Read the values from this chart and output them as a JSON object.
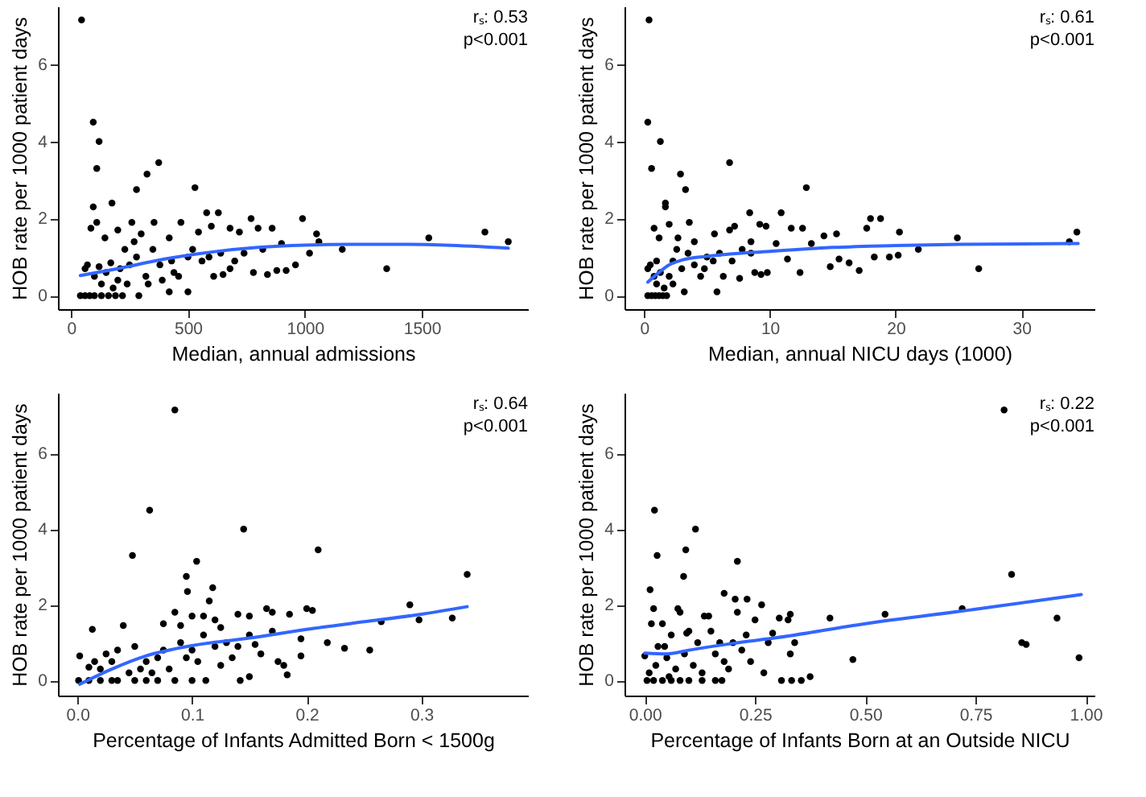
{
  "chart_data": [
    {
      "type": "scatter",
      "xlabel": "Median, annual admissions",
      "ylabel": "HOB rate per 1000 patient days",
      "xlim": [
        -56,
        1954
      ],
      "ylim": [
        -0.35,
        7.5
      ],
      "xticks": [
        0,
        500,
        1000,
        1500
      ],
      "yticks": [
        0,
        2,
        4,
        6
      ],
      "marker": "circle",
      "annotations": [
        "rₛ: 0.53",
        "p<0.001"
      ],
      "series": [
        {
          "color": "#000000",
          "x": [
            45,
            95,
            120,
            110,
            95,
            175,
            375,
            325,
            280,
            530,
            580,
            630,
            990,
            770,
            470,
            260,
            355,
            85,
            110,
            145,
            200,
            300,
            420,
            545,
            600,
            680,
            800,
            860,
            720,
            1050,
            1530,
            1770,
            1870,
            1160,
            1350,
            1020,
            1060,
            900,
            960,
            920,
            880,
            840,
            780,
            650,
            610,
            500,
            420,
            290,
            40,
            60,
            80,
            100,
            130,
            160,
            190,
            220,
            60,
            70,
            100,
            130,
            150,
            180,
            200,
            230,
            250,
            280,
            320,
            350,
            380,
            430,
            460,
            500,
            520,
            560,
            590,
            640,
            700,
            740,
            820,
            680,
            240,
            330,
            390,
            120,
            170,
            210,
            270,
            440
          ],
          "values": [
            7.15,
            4.5,
            4.0,
            3.3,
            2.3,
            2.4,
            3.45,
            3.15,
            2.75,
            2.8,
            2.15,
            2.15,
            2.0,
            2.0,
            1.9,
            1.9,
            1.9,
            1.75,
            1.9,
            1.5,
            1.7,
            1.6,
            1.5,
            1.65,
            1.8,
            1.75,
            1.75,
            1.75,
            1.65,
            1.6,
            1.5,
            1.65,
            1.4,
            1.2,
            0.7,
            1.1,
            1.4,
            1.35,
            0.8,
            0.65,
            0.65,
            0.55,
            0.6,
            0.55,
            0.5,
            0.1,
            0.1,
            0.0,
            0.0,
            0.0,
            0.0,
            0.0,
            0.0,
            0.0,
            0.0,
            0.0,
            0.7,
            0.8,
            0.5,
            0.3,
            0.6,
            0.2,
            0.4,
            1.2,
            0.8,
            1.0,
            0.5,
            1.2,
            0.8,
            0.9,
            0.5,
            1.0,
            1.2,
            0.9,
            1.0,
            1.1,
            0.9,
            1.1,
            1.2,
            0.7,
            0.3,
            0.3,
            0.4,
            0.75,
            0.85,
            0.7,
            1.4,
            0.6
          ]
        },
        {
          "type": "line",
          "marker": "none",
          "color": "#3366ff",
          "x": [
            40,
            200,
            400,
            600,
            800,
            1000,
            1200,
            1400,
            1600,
            1870
          ],
          "values": [
            0.52,
            0.7,
            0.95,
            1.13,
            1.25,
            1.31,
            1.33,
            1.33,
            1.31,
            1.23
          ]
        }
      ]
    },
    {
      "type": "scatter",
      "xlabel": "Median, annual NICU days (1000)",
      "ylabel": "HOB rate per 1000 patient days",
      "xlim": [
        -1.55,
        35.8
      ],
      "ylim": [
        -0.35,
        7.5
      ],
      "xticks": [
        0,
        10,
        20,
        30
      ],
      "yticks": [
        0,
        2,
        4,
        6
      ],
      "marker": "circle",
      "annotations": [
        "rₛ: 0.61",
        "p<0.001"
      ],
      "series": [
        {
          "color": "#000000",
          "x": [
            0.4,
            0.3,
            1.3,
            0.6,
            2.9,
            3.3,
            6.8,
            12.9,
            1.7,
            1.7,
            8.4,
            10.9,
            18,
            18.8,
            9.7,
            7.2,
            3.6,
            2.0,
            0.8,
            1.2,
            2.7,
            4.0,
            5.6,
            6.8,
            8.5,
            9.2,
            11.7,
            12.6,
            14.3,
            15.3,
            17.7,
            20.3,
            24.9,
            33.8,
            34.4,
            26.6,
            21.8,
            20.2,
            19.5,
            18.3,
            17.1,
            16.3,
            15.5,
            14.8,
            13.3,
            12.4,
            11.4,
            10.5,
            9.8,
            9.3,
            8.8,
            7.6,
            5.8,
            6.3,
            3.2,
            0.3,
            0.6,
            0.9,
            1.2,
            1.5,
            1.8,
            0.3,
            0.5,
            0.8,
            1.0,
            1.3,
            1.6,
            2.0,
            2.3,
            2.6,
            3.0,
            3.5,
            4.0,
            4.5,
            5.0,
            5.5,
            6.0,
            7.0,
            7.8,
            8.5,
            4.8,
            2.3,
            1.0
          ],
          "values": [
            7.15,
            4.5,
            4.0,
            3.3,
            3.15,
            2.75,
            3.45,
            2.8,
            2.4,
            2.3,
            2.15,
            2.15,
            2.0,
            2.0,
            1.8,
            1.8,
            1.9,
            1.85,
            1.75,
            1.5,
            1.5,
            1.4,
            1.6,
            1.7,
            1.4,
            1.85,
            1.75,
            1.75,
            1.55,
            1.6,
            1.75,
            1.65,
            1.5,
            1.4,
            1.65,
            0.7,
            1.2,
            1.05,
            1.0,
            1.0,
            0.65,
            0.85,
            0.95,
            0.75,
            1.35,
            0.6,
            0.95,
            1.35,
            0.6,
            0.55,
            0.6,
            0.45,
            0.1,
            0.5,
            0.1,
            0.0,
            0.0,
            0.0,
            0.0,
            0.0,
            0.0,
            0.7,
            0.8,
            0.5,
            0.3,
            0.6,
            0.2,
            0.5,
            0.9,
            1.2,
            0.7,
            1.1,
            0.8,
            0.5,
            1.0,
            0.9,
            1.1,
            0.9,
            1.2,
            1.1,
            0.7,
            0.3,
            0.9
          ]
        },
        {
          "type": "line",
          "marker": "none",
          "color": "#3366ff",
          "x": [
            0.3,
            1,
            2,
            3,
            5,
            10,
            15,
            20,
            25,
            34.5
          ],
          "values": [
            0.35,
            0.55,
            0.8,
            0.92,
            1.02,
            1.15,
            1.25,
            1.3,
            1.33,
            1.35
          ]
        }
      ]
    },
    {
      "type": "scatter",
      "xlabel": "Percentage of Infants Admitted Born < 1500g",
      "ylabel": "HOB rate per 1000 patient days",
      "xlim": [
        -0.017,
        0.393
      ],
      "ylim": [
        -0.4,
        7.6
      ],
      "xticks": [
        {
          "value": 0,
          "label": "0.0"
        },
        0.1,
        0.2,
        0.3
      ],
      "yticks": [
        0,
        2,
        4,
        6
      ],
      "marker": "circle",
      "annotations": [
        "rₛ: 0.64",
        "p<0.001"
      ],
      "series": [
        {
          "color": "#000000",
          "x": [
            0.085,
            0.063,
            0.145,
            0.048,
            0.104,
            0.21,
            0.34,
            0.095,
            0.096,
            0.118,
            0.115,
            0.29,
            0.298,
            0.327,
            0.265,
            0.255,
            0.233,
            0.218,
            0.2,
            0.205,
            0.185,
            0.17,
            0.165,
            0.15,
            0.14,
            0.12,
            0.11,
            0.1,
            0.085,
            0.09,
            0.075,
            0.04,
            0.013,
            0.002,
            0.001,
            0.01,
            0.02,
            0.03,
            0.035,
            0.05,
            0.06,
            0.07,
            0.085,
            0.1,
            0.112,
            0.142,
            0.15,
            0.183,
            0.18,
            0.195,
            0.175,
            0.16,
            0.15,
            0.14,
            0.13,
            0.125,
            0.12,
            0.11,
            0.1,
            0.095,
            0.09,
            0.08,
            0.075,
            0.07,
            0.065,
            0.06,
            0.055,
            0.05,
            0.045,
            0.035,
            0.03,
            0.025,
            0.02,
            0.015,
            0.01,
            0.195,
            0.17,
            0.155,
            0.135,
            0.125,
            0.105
          ],
          "values": [
            7.15,
            4.5,
            4.0,
            3.3,
            3.15,
            3.45,
            2.8,
            2.75,
            2.35,
            2.45,
            2.1,
            2.0,
            1.6,
            1.65,
            1.55,
            0.8,
            0.85,
            1.0,
            1.9,
            1.85,
            1.75,
            1.8,
            1.9,
            1.7,
            1.75,
            1.6,
            1.7,
            1.7,
            1.8,
            1.45,
            1.5,
            1.45,
            1.35,
            0.65,
            0.0,
            0.0,
            0.0,
            0.0,
            0.0,
            0.0,
            0.0,
            0.0,
            0.0,
            0.0,
            0.0,
            0.0,
            0.1,
            0.15,
            0.4,
            0.65,
            0.5,
            0.7,
            1.2,
            0.9,
            1.0,
            0.4,
            0.9,
            1.2,
            0.8,
            0.6,
            1.0,
            0.3,
            0.8,
            0.6,
            0.2,
            0.5,
            0.3,
            0.9,
            0.2,
            0.8,
            0.5,
            0.7,
            0.3,
            0.5,
            0.35,
            1.1,
            1.3,
            0.95,
            0.6,
            1.4,
            0.5
          ]
        },
        {
          "type": "line",
          "marker": "none",
          "color": "#3366ff",
          "x": [
            0.002,
            0.03,
            0.06,
            0.1,
            0.15,
            0.2,
            0.25,
            0.3,
            0.34
          ],
          "values": [
            -0.1,
            0.3,
            0.65,
            0.92,
            1.12,
            1.35,
            1.55,
            1.75,
            1.95
          ]
        }
      ]
    },
    {
      "type": "scatter",
      "xlabel": "Percentage of Infants Born at an Outside NICU",
      "ylabel": "HOB rate per 1000 patient days",
      "xlim": [
        -0.046,
        1.02
      ],
      "ylim": [
        -0.4,
        7.6
      ],
      "xticks": [
        {
          "value": 0,
          "label": "0.00"
        },
        {
          "value": 0.25,
          "label": "0.25"
        },
        {
          "value": 0.5,
          "label": "0.50"
        },
        {
          "value": 0.75,
          "label": "0.75"
        },
        {
          "value": 1,
          "label": "1.00"
        }
      ],
      "yticks": [
        0,
        2,
        4,
        6
      ],
      "marker": "circle",
      "annotations": [
        "rₛ: 0.22",
        "p<0.001"
      ],
      "series": [
        {
          "color": "#000000",
          "x": [
            0.815,
            0.022,
            0.115,
            0.028,
            0.093,
            0.21,
            0.832,
            0.088,
            0.012,
            0.18,
            0.205,
            0.232,
            0.265,
            0.72,
            0.545,
            0.42,
            0.935,
            0.985,
            0.855,
            0.865,
            0.472,
            0.375,
            0.355,
            0.333,
            0.31,
            0.33,
            0.34,
            0.325,
            0.305,
            0.33,
            0.29,
            0.28,
            0.27,
            0.25,
            0.24,
            0.23,
            0.22,
            0.21,
            0.2,
            0.19,
            0.18,
            0.17,
            0.16,
            0.15,
            0.145,
            0.13,
            0.12,
            0.11,
            0.1,
            0.09,
            0.08,
            0.07,
            0.06,
            0.05,
            0.04,
            0.03,
            0.02,
            0.01,
            0.0,
            0.005,
            0.02,
            0.04,
            0.06,
            0.08,
            0.1,
            0.13,
            0.16,
            0.175,
            0.015,
            0.045,
            0.075,
            0.095,
            0.135,
            0.025,
            0.055
          ],
          "values": [
            7.15,
            4.5,
            4.0,
            3.3,
            3.45,
            3.15,
            2.8,
            2.75,
            2.4,
            2.3,
            2.15,
            2.15,
            2.0,
            1.9,
            1.75,
            1.65,
            1.65,
            0.6,
            1.0,
            0.95,
            0.55,
            0.1,
            0.0,
            0.0,
            0.0,
            0.7,
            1.0,
            1.6,
            1.65,
            1.75,
            1.25,
            1.0,
            0.2,
            1.6,
            0.5,
            1.2,
            0.8,
            1.8,
            1.0,
            0.3,
            0.5,
            1.0,
            0.7,
            1.3,
            1.7,
            0.2,
            1.0,
            0.4,
            1.3,
            0.7,
            1.8,
            0.3,
            1.2,
            0.6,
            1.5,
            0.9,
            1.9,
            0.2,
            0.65,
            0.0,
            0.0,
            0.0,
            0.0,
            0.0,
            0.0,
            0.0,
            0.0,
            0.0,
            1.5,
            0.9,
            1.9,
            1.25,
            1.7,
            0.4,
            0.1
          ]
        },
        {
          "type": "line",
          "marker": "none",
          "color": "#3366ff",
          "x": [
            0.0,
            0.05,
            0.1,
            0.2,
            0.3,
            0.5,
            0.75,
            0.99
          ],
          "values": [
            0.72,
            0.7,
            0.8,
            0.98,
            1.13,
            1.5,
            1.88,
            2.27
          ]
        }
      ]
    }
  ]
}
